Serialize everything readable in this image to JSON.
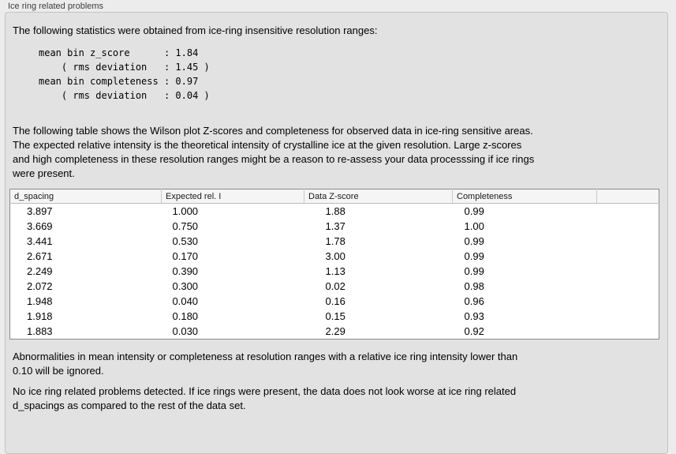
{
  "panel": {
    "title": "Ice ring related problems",
    "stats_intro": "The following statistics were obtained from ice-ring insensitive resolution ranges:",
    "stats_block": "mean bin z_score      : 1.84\n    ( rms deviation   : 1.45 )\nmean bin completeness : 0.97\n    ( rms deviation   : 0.04 )",
    "description": "The following table shows the Wilson plot Z-scores and completeness for observed data in ice-ring sensitive areas.\nThe expected relative intensity is the theoretical intensity of crystalline ice at the given resolution. Large z-scores\nand high completeness in these resolution ranges might be a reason to re-assess your data processsing if ice rings\nwere present.",
    "table": {
      "columns": [
        "d_spacing",
        "Expected rel. I",
        "Data Z-score",
        "Completeness",
        ""
      ],
      "rows": [
        [
          "3.897",
          "1.000",
          "1.88",
          "0.99"
        ],
        [
          "3.669",
          "0.750",
          "1.37",
          "1.00"
        ],
        [
          "3.441",
          "0.530",
          "1.78",
          "0.99"
        ],
        [
          "2.671",
          "0.170",
          "3.00",
          "0.99"
        ],
        [
          "2.249",
          "0.390",
          "1.13",
          "0.99"
        ],
        [
          "2.072",
          "0.300",
          "0.02",
          "0.98"
        ],
        [
          "1.948",
          "0.040",
          "0.16",
          "0.96"
        ],
        [
          "1.918",
          "0.180",
          "0.15",
          "0.93"
        ],
        [
          "1.883",
          "0.030",
          "2.29",
          "0.92"
        ]
      ]
    },
    "ignore_note": "Abnormalities in mean intensity or completeness at resolution ranges with a relative ice ring intensity lower than\n0.10 will be ignored.",
    "conclusion": "No ice ring related problems detected. If ice rings were present, the data does not look worse at ice ring related\nd_spacings as compared to the rest of the data set."
  },
  "colors": {
    "page_bg": "#ececec",
    "panel_bg": "#e2e2e2",
    "table_header_bg": "#f5f5f5",
    "table_border": "#8b8b8b"
  }
}
